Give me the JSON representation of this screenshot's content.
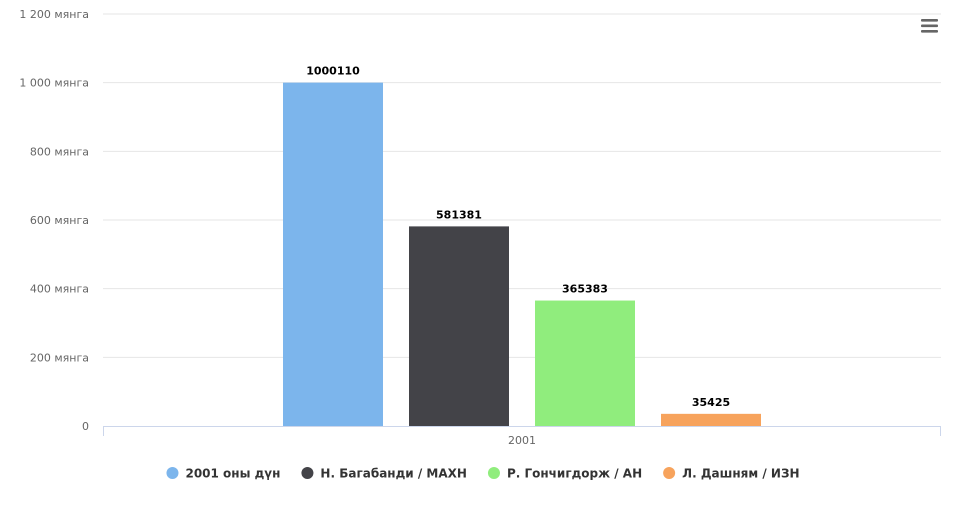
{
  "chart_data": {
    "type": "bar",
    "categories": [
      "2001"
    ],
    "y_ticks": [
      {
        "value": 0,
        "label": "0"
      },
      {
        "value": 200000,
        "label": "200 мянга"
      },
      {
        "value": 400000,
        "label": "400 мянга"
      },
      {
        "value": 600000,
        "label": "600 мянга"
      },
      {
        "value": 800000,
        "label": "800 мянга"
      },
      {
        "value": 1000000,
        "label": "1 000 мянга"
      },
      {
        "value": 1200000,
        "label": "1 200 мянга"
      }
    ],
    "ylim": [
      0,
      1200000
    ],
    "grid": true,
    "legend_position": "bottom-center",
    "series": [
      {
        "name": "2001 оны дүн",
        "values": [
          1000110
        ],
        "value_labels": [
          "1000110"
        ],
        "color": "#7cb5ec"
      },
      {
        "name": "Н. Багабанди / МАХН",
        "values": [
          581381
        ],
        "value_labels": [
          "581381"
        ],
        "color": "#434348"
      },
      {
        "name": "Р. Гончигдорж / АН",
        "values": [
          365383
        ],
        "value_labels": [
          "365383"
        ],
        "color": "#90ed7d"
      },
      {
        "name": "Л. Дашням / ИЗН",
        "values": [
          35425
        ],
        "value_labels": [
          "35425"
        ],
        "color": "#f7a35c"
      }
    ]
  },
  "menu": {
    "icon": "hamburger-menu-icon"
  }
}
